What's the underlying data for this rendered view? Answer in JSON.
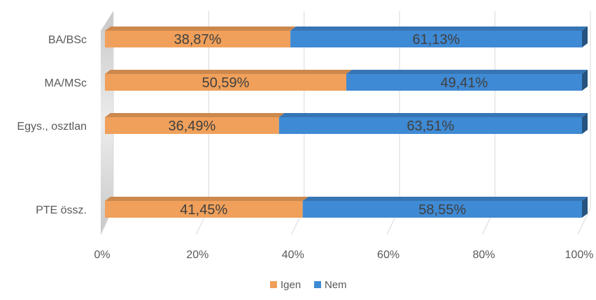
{
  "chart_data": {
    "type": "bar",
    "orientation": "horizontal",
    "stacked": "percent",
    "style": "3d",
    "categories": [
      "BA/BSc",
      "MA/MSc",
      "Egys., osztlan",
      "",
      "PTE össz."
    ],
    "series": [
      {
        "name": "Igen",
        "color": "#F0A05A",
        "values": [
          38.87,
          50.59,
          36.49,
          null,
          41.45
        ],
        "labels": [
          "38,87%",
          "50,59%",
          "36,49%",
          "",
          "41,45%"
        ]
      },
      {
        "name": "Nem",
        "color": "#3F8AD4",
        "values": [
          61.13,
          49.41,
          63.51,
          null,
          58.55
        ],
        "labels": [
          "61,13%",
          "49,41%",
          "63,51%",
          "",
          "58,55%"
        ]
      }
    ],
    "xlim": [
      0,
      100
    ],
    "xticks": [
      0,
      20,
      40,
      60,
      80,
      100
    ],
    "xtick_labels": [
      "0%",
      "20%",
      "40%",
      "60%",
      "80%",
      "100%"
    ],
    "grid": true,
    "legend": "bottom",
    "title": "",
    "xlabel": "",
    "ylabel": ""
  }
}
